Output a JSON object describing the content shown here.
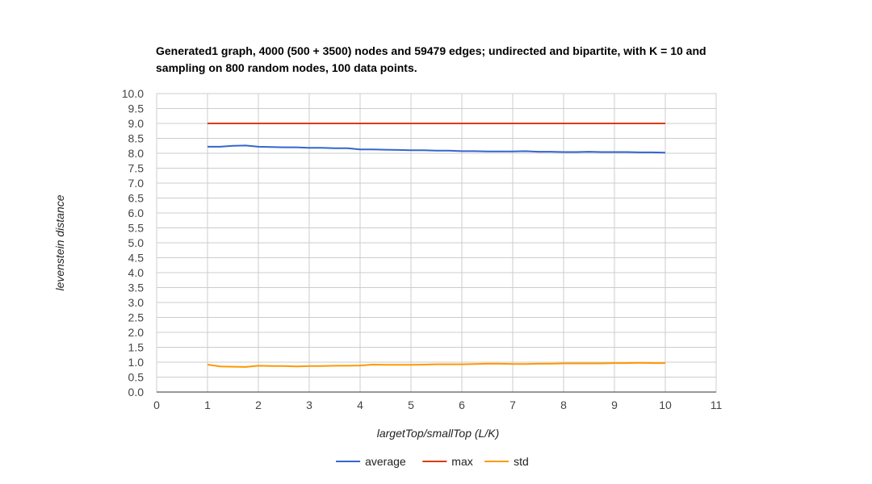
{
  "chart_data": {
    "type": "line",
    "title": "Generated1 graph, 4000 (500 + 3500) nodes and 59479 edges; undirected and bipartite, with K = 10 and sampling on 800 random nodes, 100 data points.",
    "xlabel": "largetTop/smallTop (L/K)",
    "ylabel": "levenstein distance",
    "xlim": [
      0,
      11
    ],
    "ylim": [
      0,
      10
    ],
    "x_ticks": [
      "0",
      "1",
      "2",
      "3",
      "4",
      "5",
      "6",
      "7",
      "8",
      "9",
      "10",
      "11"
    ],
    "y_ticks": [
      "0.0",
      "0.5",
      "1.0",
      "1.5",
      "2.0",
      "2.5",
      "3.0",
      "3.5",
      "4.0",
      "4.5",
      "5.0",
      "5.5",
      "6.0",
      "6.5",
      "7.0",
      "7.5",
      "8.0",
      "8.5",
      "9.0",
      "9.5",
      "10.0"
    ],
    "grid": true,
    "legend_position": "bottom",
    "series": [
      {
        "name": "average",
        "color": "#3366cc",
        "x": [
          1,
          1.25,
          1.5,
          1.75,
          2,
          2.25,
          2.5,
          2.75,
          3,
          3.25,
          3.5,
          3.75,
          4,
          4.25,
          4.5,
          4.75,
          5,
          5.25,
          5.5,
          5.75,
          6,
          6.25,
          6.5,
          6.75,
          7,
          7.25,
          7.5,
          7.75,
          8,
          8.25,
          8.5,
          8.75,
          9,
          9.25,
          9.5,
          9.75,
          10
        ],
        "y": [
          8.22,
          8.22,
          8.25,
          8.26,
          8.22,
          8.21,
          8.2,
          8.2,
          8.18,
          8.18,
          8.17,
          8.17,
          8.13,
          8.13,
          8.12,
          8.11,
          8.1,
          8.1,
          8.09,
          8.09,
          8.07,
          8.07,
          8.06,
          8.06,
          8.06,
          8.07,
          8.05,
          8.05,
          8.04,
          8.04,
          8.05,
          8.04,
          8.04,
          8.04,
          8.03,
          8.03,
          8.02
        ]
      },
      {
        "name": "max",
        "color": "#dc3912",
        "x": [
          1,
          10
        ],
        "y": [
          9.0,
          9.0
        ]
      },
      {
        "name": "std",
        "color": "#ff9900",
        "x": [
          1,
          1.25,
          1.5,
          1.75,
          2,
          2.25,
          2.5,
          2.75,
          3,
          3.25,
          3.5,
          3.75,
          4,
          4.25,
          4.5,
          4.75,
          5,
          5.25,
          5.5,
          5.75,
          6,
          6.25,
          6.5,
          6.75,
          7,
          7.25,
          7.5,
          7.75,
          8,
          8.25,
          8.5,
          8.75,
          9,
          9.25,
          9.5,
          9.75,
          10
        ],
        "y": [
          0.92,
          0.86,
          0.85,
          0.84,
          0.88,
          0.87,
          0.87,
          0.86,
          0.87,
          0.87,
          0.88,
          0.88,
          0.89,
          0.92,
          0.91,
          0.91,
          0.91,
          0.92,
          0.93,
          0.93,
          0.93,
          0.94,
          0.95,
          0.95,
          0.94,
          0.94,
          0.95,
          0.95,
          0.96,
          0.96,
          0.96,
          0.96,
          0.97,
          0.97,
          0.98,
          0.97,
          0.97
        ]
      }
    ]
  }
}
